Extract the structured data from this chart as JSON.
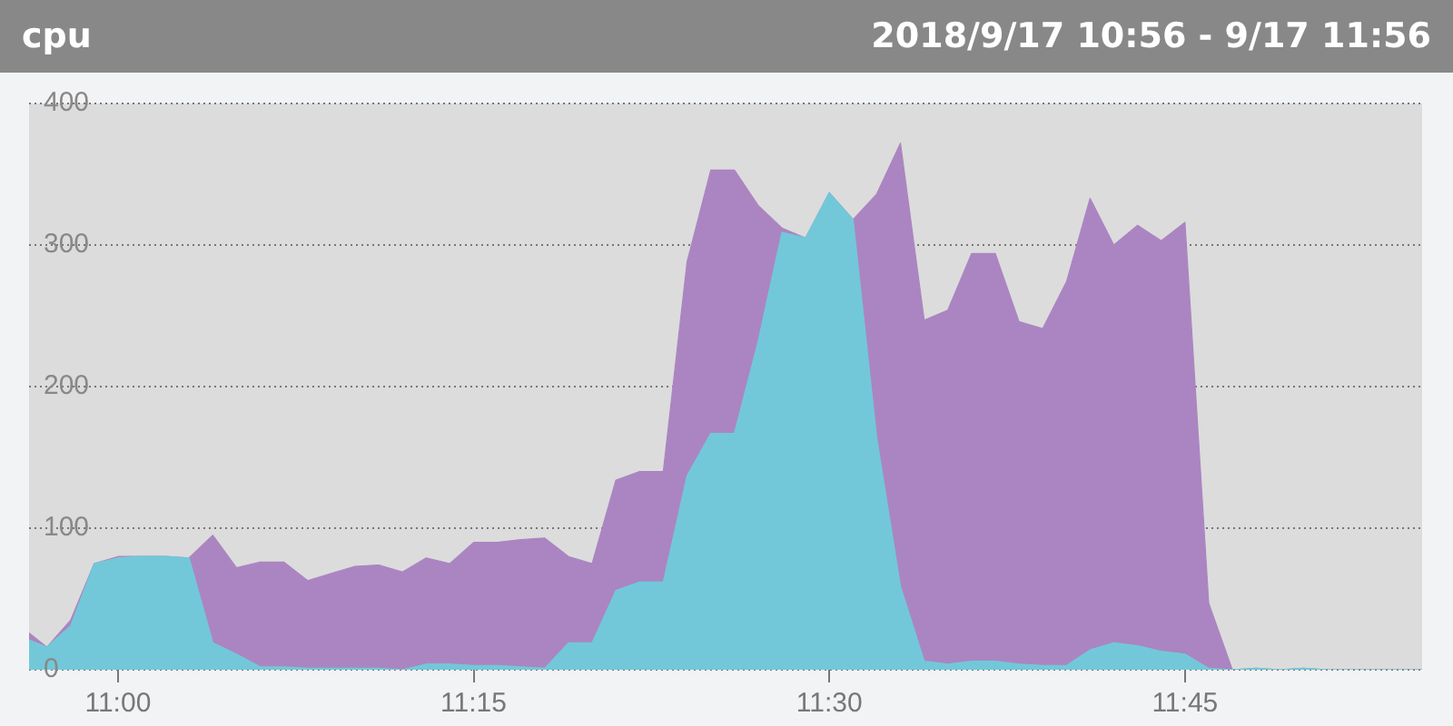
{
  "chart_data": {
    "type": "area",
    "title": "cpu",
    "subtitle": "2018/9/17 10:56 - 9/17 11:56",
    "stacked": true,
    "x": [
      10.9375,
      10.95,
      10.9667,
      10.9833,
      11,
      11.0167,
      11.0333,
      11.05,
      11.0667,
      11.0833,
      11.1,
      11.1167,
      11.1333,
      11.15,
      11.1667,
      11.1833,
      11.2,
      11.2167,
      11.2333,
      11.25,
      11.2667,
      11.2833,
      11.3,
      11.3167,
      11.3333,
      11.35,
      11.3667,
      11.3833,
      11.4,
      11.4167,
      11.4333,
      11.45,
      11.4667,
      11.4833,
      11.5,
      11.5167,
      11.5333,
      11.55,
      11.5667,
      11.5833,
      11.6,
      11.6167,
      11.6333,
      11.65,
      11.6667,
      11.6833,
      11.7,
      11.7167,
      11.7333,
      11.75,
      11.7667,
      11.7833,
      11.8,
      11.8167,
      11.8333,
      11.85,
      11.8667,
      11.8833,
      11.9,
      11.9167
    ],
    "series": [
      {
        "color": "#72c8d8",
        "values": [
          21,
          16,
          31,
          75,
          79,
          80,
          80,
          79,
          19,
          11,
          2,
          2,
          1,
          1,
          1,
          1,
          0,
          4,
          4,
          3,
          3,
          2,
          1,
          19,
          19,
          56,
          62,
          62,
          137,
          167,
          167,
          232,
          309,
          305,
          337,
          318,
          164,
          59,
          6,
          4,
          6,
          6,
          4,
          3,
          3,
          14,
          19,
          17,
          13,
          11,
          1,
          0,
          1,
          0,
          1,
          0,
          0,
          0,
          0,
          0
        ]
      },
      {
        "color": "#ab85c1",
        "values": [
          5,
          0,
          4,
          0,
          1,
          0,
          0,
          0,
          76,
          61,
          74,
          74,
          62,
          67,
          72,
          73,
          69,
          75,
          71,
          87,
          87,
          90,
          92,
          61,
          56,
          78,
          78,
          78,
          151,
          186,
          186,
          96,
          3,
          0,
          0,
          0,
          172,
          313,
          241,
          250,
          288,
          288,
          242,
          238,
          271,
          319,
          281,
          297,
          290,
          305,
          46,
          0,
          0,
          0,
          0,
          0,
          0,
          0,
          0,
          0
        ]
      }
    ],
    "xlim": [
      10.9375,
      11.9167
    ],
    "xticks": [
      {
        "value": 11,
        "label": "11:00"
      },
      {
        "value": 11.25,
        "label": "11:15"
      },
      {
        "value": 11.5,
        "label": "11:30"
      },
      {
        "value": 11.75,
        "label": "11:45"
      }
    ],
    "ylim": [
      0,
      400
    ],
    "yticks": [
      0,
      100,
      200,
      300,
      400
    ],
    "grid": "y",
    "legend": false
  }
}
